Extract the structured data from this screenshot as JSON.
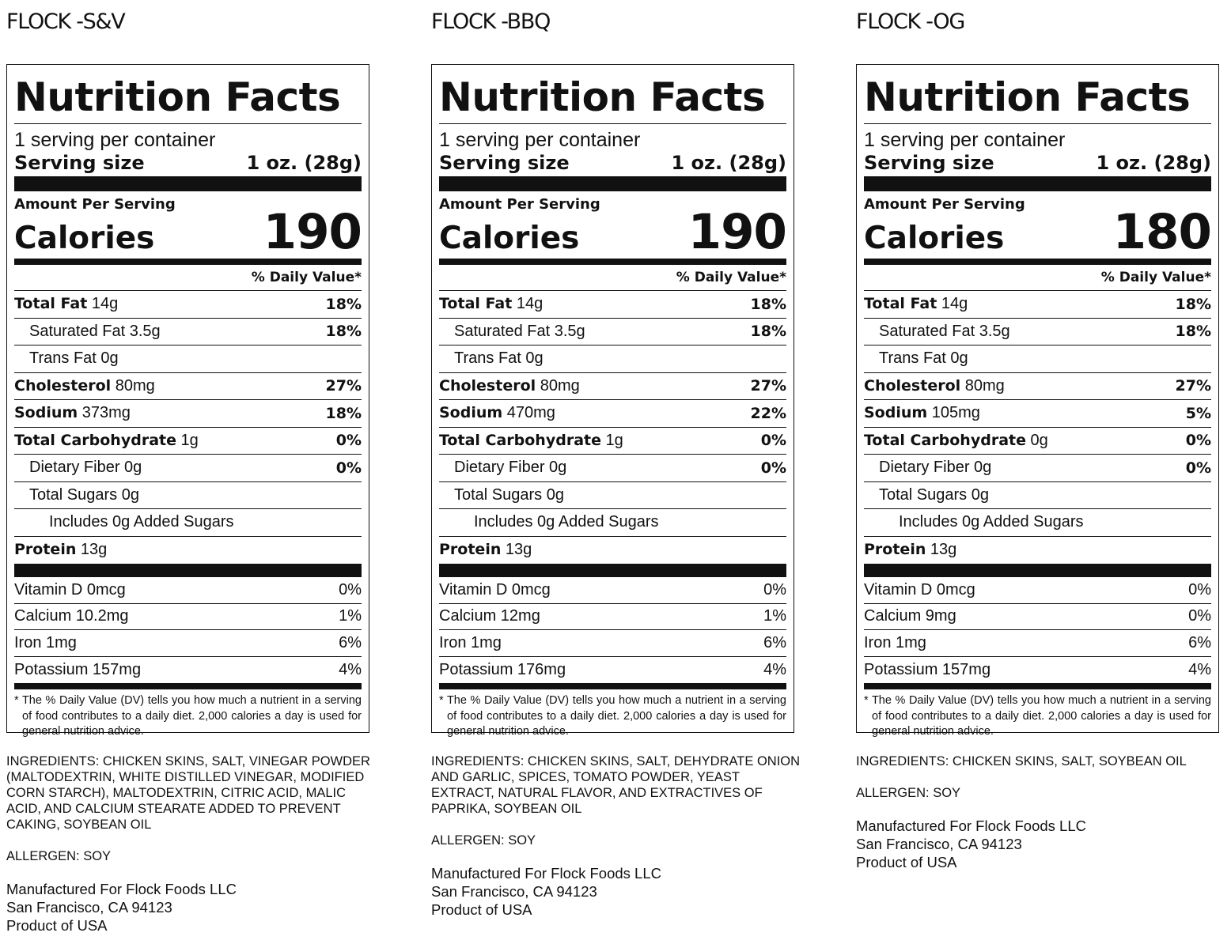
{
  "labels": [
    {
      "product": "FLOCK -S&V",
      "title": "Nutrition Facts",
      "servings_per_container": "1 serving per container",
      "serving_size_label": "Serving size",
      "serving_size_value": "1 oz. (28g)",
      "amount_per_serving": "Amount Per Serving",
      "calories_label": "Calories",
      "calories_value": "190",
      "dv_header": "% Daily Value*",
      "total_fat": {
        "label": "Total Fat",
        "amount": " 14g",
        "dv": "18%"
      },
      "saturated_fat": {
        "label": "Saturated Fat 3.5g",
        "dv": "18%"
      },
      "trans_fat": {
        "label": "Trans Fat 0g"
      },
      "cholesterol": {
        "label": "Cholesterol",
        "amount": " 80mg",
        "dv": "27%"
      },
      "sodium": {
        "label": "Sodium",
        "amount": " 373mg",
        "dv": "18%"
      },
      "total_carb": {
        "label": "Total Carbohydrate",
        "amount": " 1g",
        "dv": "0%"
      },
      "fiber": {
        "label": "Dietary Fiber 0g",
        "dv": "0%"
      },
      "sugars": {
        "label": "Total Sugars 0g"
      },
      "added_sugars": {
        "label": "Includes 0g Added Sugars"
      },
      "protein": {
        "label": "Protein",
        "amount": " 13g"
      },
      "vitamin_d": {
        "label": "Vitamin D 0mcg",
        "dv": "0%"
      },
      "calcium": {
        "label": "Calcium 10.2mg",
        "dv": "1%"
      },
      "iron": {
        "label": "Iron 1mg",
        "dv": "6%"
      },
      "potassium": {
        "label": "Potassium 157mg",
        "dv": "4%"
      },
      "footnote": "* The % Daily Value (DV) tells you how much a nutrient in a serving of food contributes to a daily diet. 2,000 calories a day is used for general nutrition advice.",
      "ingredients": "INGREDIENTS: CHICKEN SKINS, SALT, VINEGAR POWDER (MALTODEXTRIN, WHITE DISTILLED VINEGAR, MODIFIED CORN STARCH), MALTODEXTRIN, CITRIC ACID, MALIC ACID, AND CALCIUM STEARATE ADDED TO PREVENT CAKING, SOYBEAN OIL",
      "allergen": "ALLERGEN: SOY",
      "mfr_line1": "Manufactured For Flock Foods LLC",
      "mfr_line2": "San Francisco, CA 94123",
      "mfr_line3": "Product of USA"
    },
    {
      "product": "FLOCK -BBQ",
      "title": "Nutrition Facts",
      "servings_per_container": "1 serving per container",
      "serving_size_label": "Serving size",
      "serving_size_value": "1 oz. (28g)",
      "amount_per_serving": "Amount Per Serving",
      "calories_label": "Calories",
      "calories_value": "190",
      "dv_header": "% Daily Value*",
      "total_fat": {
        "label": "Total Fat",
        "amount": " 14g",
        "dv": "18%"
      },
      "saturated_fat": {
        "label": "Saturated Fat 3.5g",
        "dv": "18%"
      },
      "trans_fat": {
        "label": "Trans Fat 0g"
      },
      "cholesterol": {
        "label": "Cholesterol",
        "amount": " 80mg",
        "dv": "27%"
      },
      "sodium": {
        "label": "Sodium",
        "amount": " 470mg",
        "dv": "22%"
      },
      "total_carb": {
        "label": "Total Carbohydrate",
        "amount": " 1g",
        "dv": "0%"
      },
      "fiber": {
        "label": "Dietary Fiber 0g",
        "dv": "0%"
      },
      "sugars": {
        "label": "Total Sugars 0g"
      },
      "added_sugars": {
        "label": "Includes 0g Added Sugars"
      },
      "protein": {
        "label": "Protein",
        "amount": " 13g"
      },
      "vitamin_d": {
        "label": "Vitamin D 0mcg",
        "dv": "0%"
      },
      "calcium": {
        "label": "Calcium 12mg",
        "dv": "1%"
      },
      "iron": {
        "label": "Iron 1mg",
        "dv": "6%"
      },
      "potassium": {
        "label": "Potassium 176mg",
        "dv": "4%"
      },
      "footnote": "* The % Daily Value (DV) tells you how much a nutrient in a serving of food contributes to a daily diet. 2,000 calories a day is used for general nutrition advice.",
      "ingredients": "INGREDIENTS: CHICKEN SKINS, SALT, DEHYDRATE ONION AND GARLIC, SPICES, TOMATO POWDER, YEAST EXTRACT, NATURAL FLAVOR, AND EXTRACTIVES OF PAPRIKA, SOYBEAN OIL",
      "allergen": "ALLERGEN: SOY",
      "mfr_line1": "Manufactured For Flock Foods LLC",
      "mfr_line2": "San Francisco, CA 94123",
      "mfr_line3": "Product of USA"
    },
    {
      "product": "FLOCK -OG",
      "title": "Nutrition Facts",
      "servings_per_container": "1 serving per container",
      "serving_size_label": "Serving size",
      "serving_size_value": "1 oz. (28g)",
      "amount_per_serving": "Amount Per Serving",
      "calories_label": "Calories",
      "calories_value": "180",
      "dv_header": "% Daily Value*",
      "total_fat": {
        "label": "Total Fat",
        "amount": " 14g",
        "dv": "18%"
      },
      "saturated_fat": {
        "label": "Saturated Fat 3.5g",
        "dv": "18%"
      },
      "trans_fat": {
        "label": "Trans Fat 0g"
      },
      "cholesterol": {
        "label": "Cholesterol",
        "amount": " 80mg",
        "dv": "27%"
      },
      "sodium": {
        "label": "Sodium",
        "amount": " 105mg",
        "dv": "5%"
      },
      "total_carb": {
        "label": "Total Carbohydrate",
        "amount": " 0g",
        "dv": "0%"
      },
      "fiber": {
        "label": "Dietary Fiber 0g",
        "dv": "0%"
      },
      "sugars": {
        "label": "Total Sugars 0g"
      },
      "added_sugars": {
        "label": "Includes 0g Added Sugars"
      },
      "protein": {
        "label": "Protein",
        "amount": " 13g"
      },
      "vitamin_d": {
        "label": "Vitamin D 0mcg",
        "dv": "0%"
      },
      "calcium": {
        "label": "Calcium 9mg",
        "dv": "0%"
      },
      "iron": {
        "label": "Iron 1mg",
        "dv": "6%"
      },
      "potassium": {
        "label": "Potassium 157mg",
        "dv": "4%"
      },
      "footnote": "* The % Daily Value (DV) tells you how much a nutrient in a serving of food contributes to a daily diet. 2,000 calories a day is used for general nutrition advice.",
      "ingredients": "INGREDIENTS: CHICKEN SKINS, SALT, SOYBEAN OIL",
      "allergen": "ALLERGEN: SOY",
      "mfr_line1": "Manufactured For Flock Foods LLC",
      "mfr_line2": "San Francisco, CA 94123",
      "mfr_line3": "Product of USA"
    }
  ]
}
